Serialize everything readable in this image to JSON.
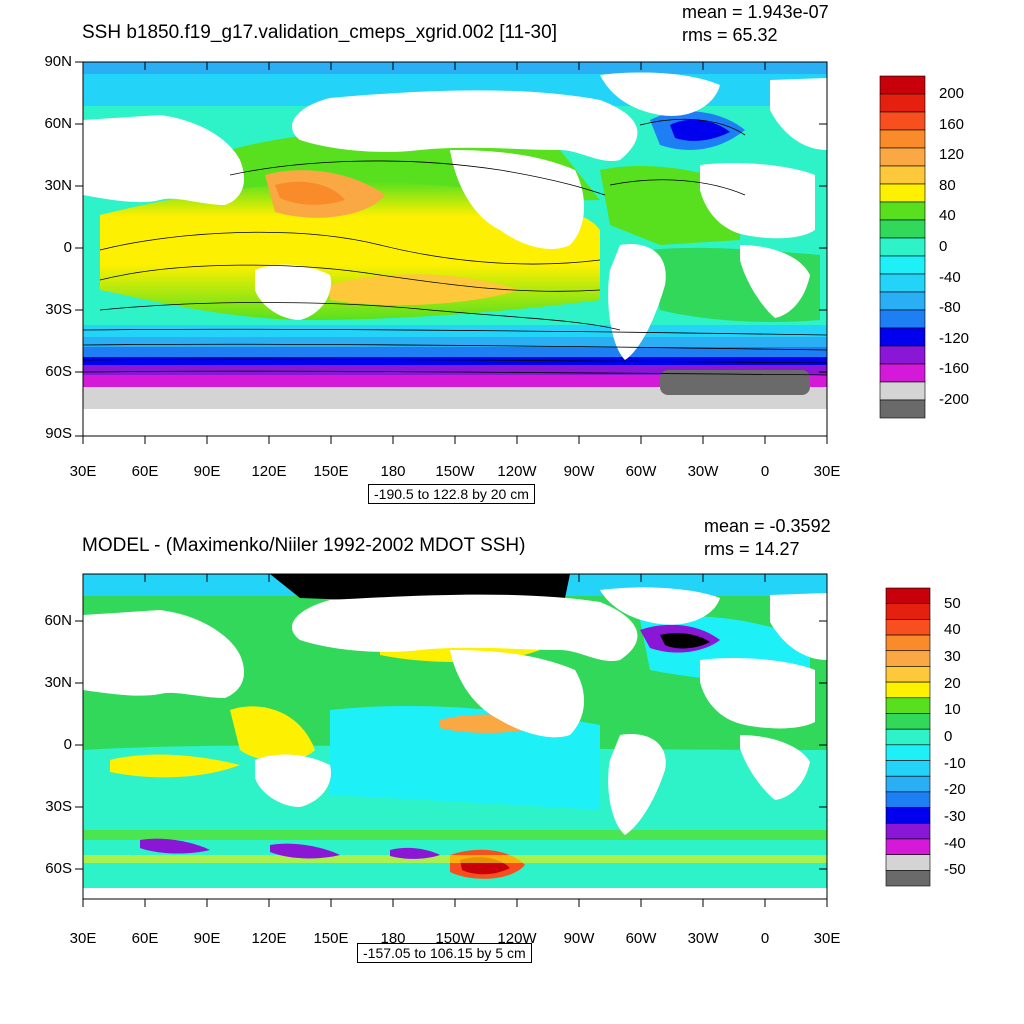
{
  "panels": [
    {
      "title": "SSH b1850.f19_g17.validation_cmeps_xgrid.002 [11-30]",
      "mean": "mean = 1.943e-07",
      "rms": "rms = 65.32",
      "info": "-190.5 to 122.8 by 20 cm",
      "lat_labels": [
        "90N",
        "60N",
        "30N",
        "0",
        "30S",
        "60S",
        "90S"
      ],
      "lon_labels": [
        "30E",
        "60E",
        "90E",
        "120E",
        "150E",
        "180",
        "150W",
        "120W",
        "90W",
        "60W",
        "30W",
        "0",
        "30E"
      ],
      "colorbar": {
        "labels": [
          "200",
          "160",
          "120",
          "80",
          "40",
          "0",
          "-40",
          "-80",
          "-120",
          "-160",
          "-200"
        ],
        "colors": [
          "#c8000a",
          "#e5200e",
          "#f7501e",
          "#f98b2a",
          "#f9a843",
          "#fdc93a",
          "#fdf000",
          "#58e01e",
          "#32d85a",
          "#2ef2c8",
          "#1ef0f8",
          "#24d4f8",
          "#2aaef4",
          "#1e7ff5",
          "#0000ee",
          "#8a16d6",
          "#d41ad8",
          "#d4d4d4",
          "#6a6a6a"
        ]
      }
    },
    {
      "title": "MODEL - (Maximenko/Niiler 1992-2002 MDOT SSH)",
      "mean": "mean = -0.3592",
      "rms": "rms = 14.27",
      "info": "-157.05 to 106.15 by 5 cm",
      "lat_labels": [
        "60N",
        "30N",
        "0",
        "30S",
        "60S"
      ],
      "lon_labels": [
        "30E",
        "60E",
        "90E",
        "120E",
        "150E",
        "180",
        "150W",
        "120W",
        "90W",
        "60W",
        "30W",
        "0",
        "30E"
      ],
      "colorbar": {
        "labels": [
          "50",
          "40",
          "30",
          "20",
          "10",
          "0",
          "-10",
          "-20",
          "-30",
          "-40",
          "-50"
        ],
        "colors": [
          "#c8000a",
          "#e5200e",
          "#f7501e",
          "#f98b2a",
          "#f9a843",
          "#fdc93a",
          "#fdf000",
          "#58e01e",
          "#32d85a",
          "#2ef2c8",
          "#1ef0f8",
          "#24d4f8",
          "#2aaef4",
          "#1e7ff5",
          "#0000ee",
          "#8a16d6",
          "#d41ad8",
          "#d4d4d4",
          "#6a6a6a"
        ]
      }
    }
  ]
}
